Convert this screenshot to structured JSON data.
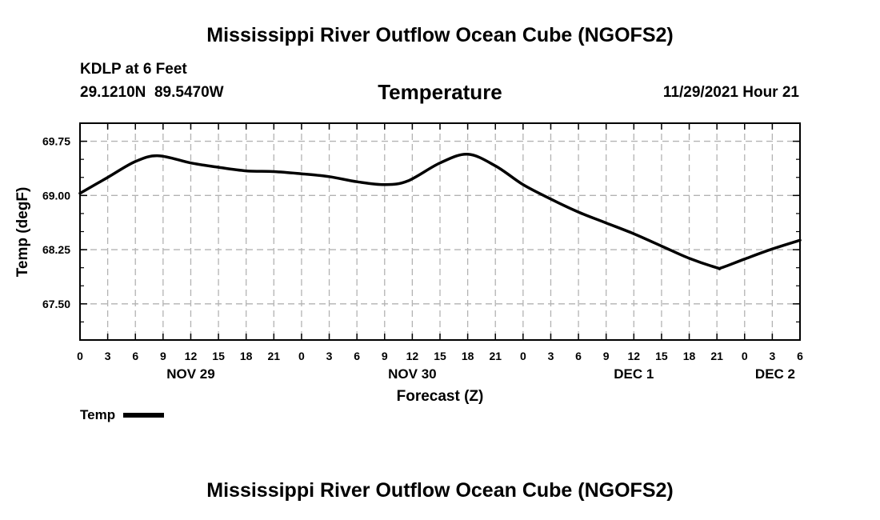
{
  "header": {
    "title": "Mississippi River Outflow Ocean Cube (NGOFS2)",
    "station": "KDLP at 6 Feet",
    "coords": "29.1210N  89.5470W",
    "parameter": "Temperature",
    "datetime": "11/29/2021 Hour 21"
  },
  "footer": {
    "title": "Mississippi River Outflow Ocean Cube (NGOFS2)"
  },
  "legend": {
    "label": "Temp"
  },
  "chart_data": {
    "type": "line",
    "title": "Temperature",
    "xlabel": "Forecast (Z)",
    "ylabel": "Temp (degF)",
    "xlim": [
      0,
      78
    ],
    "ylim": [
      67.0,
      70.0
    ],
    "y_ticks": [
      67.5,
      68.25,
      69.0,
      69.75
    ],
    "y_tick_labels": [
      "67.50",
      "68.25",
      "69.00",
      "69.75"
    ],
    "x_ticks": [
      0,
      3,
      6,
      9,
      12,
      15,
      18,
      21,
      24,
      27,
      30,
      33,
      36,
      39,
      42,
      45,
      48,
      51,
      54,
      57,
      60,
      63,
      66,
      69,
      72,
      75,
      78
    ],
    "x_tick_labels": [
      "0",
      "3",
      "6",
      "9",
      "12",
      "15",
      "18",
      "21",
      "0",
      "3",
      "6",
      "9",
      "12",
      "15",
      "18",
      "21",
      "0",
      "3",
      "6",
      "9",
      "12",
      "15",
      "18",
      "21",
      "0",
      "3",
      "6"
    ],
    "day_labels": [
      {
        "label": "NOV 29",
        "hour": 12
      },
      {
        "label": "NOV 30",
        "hour": 36
      },
      {
        "label": "DEC 1",
        "hour": 60
      },
      {
        "label": "DEC 2",
        "hour": 78
      }
    ],
    "grid": true,
    "series": [
      {
        "name": "Temp",
        "x": [
          0,
          3,
          6,
          8.5,
          12,
          15,
          18,
          21,
          24,
          27,
          30,
          33,
          35.5,
          39,
          42,
          45,
          48,
          51,
          54,
          57,
          60,
          63,
          66,
          69,
          69.5,
          72,
          75,
          78
        ],
        "values": [
          69.03,
          69.25,
          69.47,
          69.55,
          69.45,
          69.39,
          69.34,
          69.33,
          69.3,
          69.26,
          69.19,
          69.15,
          69.2,
          69.45,
          69.57,
          69.41,
          69.15,
          68.95,
          68.77,
          68.62,
          68.47,
          68.3,
          68.13,
          68.0,
          68.0,
          68.12,
          68.26,
          68.38
        ]
      }
    ]
  }
}
